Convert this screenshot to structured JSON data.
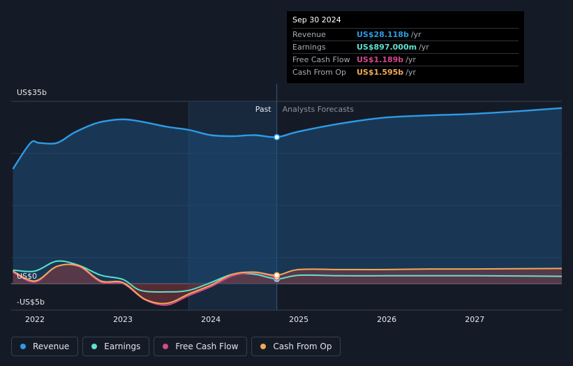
{
  "chart_data": {
    "type": "area",
    "title": "",
    "xlabel": "",
    "ylabel": "",
    "ylim": [
      -5,
      35
    ],
    "y_tick_labels": [
      "US$35b",
      "US$0",
      "-US$5b"
    ],
    "x_tick_labels": [
      "2022",
      "2023",
      "2024",
      "2025",
      "2026",
      "2027"
    ],
    "x_ticks": [
      2022,
      2023,
      2024,
      2025,
      2026,
      2027
    ],
    "xlim": [
      2021.73,
      2027.99
    ],
    "past_label": "Past",
    "forecast_label": "Analysts Forecasts",
    "divider_x": 2024.75,
    "shade_start_x": 2023.75,
    "series": [
      {
        "name": "Revenue",
        "color": "#2e9be6",
        "x": [
          2021.75,
          2021.95,
          2022.05,
          2022.25,
          2022.45,
          2022.7,
          2022.95,
          2023.1,
          2023.3,
          2023.5,
          2023.75,
          2024.0,
          2024.25,
          2024.5,
          2024.75,
          2025.0,
          2025.5,
          2026.0,
          2026.5,
          2027.0,
          2027.5,
          2027.99
        ],
        "values": [
          22.0,
          27.0,
          27.0,
          27.0,
          29.0,
          30.8,
          31.5,
          31.4,
          30.8,
          30.1,
          29.5,
          28.5,
          28.3,
          28.5,
          28.118,
          29.2,
          30.8,
          31.9,
          32.3,
          32.6,
          33.1,
          33.7
        ]
      },
      {
        "name": "Earnings",
        "color": "#5fe0cf",
        "x": [
          2021.75,
          2022.0,
          2022.25,
          2022.5,
          2022.75,
          2023.0,
          2023.2,
          2023.5,
          2023.75,
          2024.0,
          2024.25,
          2024.5,
          2024.75,
          2025.0,
          2025.5,
          2026.0,
          2026.5,
          2027.0,
          2027.99
        ],
        "values": [
          2.6,
          2.4,
          4.3,
          3.5,
          1.6,
          0.8,
          -1.3,
          -1.6,
          -1.3,
          0.2,
          1.8,
          1.8,
          0.897,
          1.6,
          1.5,
          1.5,
          1.5,
          1.5,
          1.4
        ]
      },
      {
        "name": "Free Cash Flow",
        "color": "#d6478f",
        "x": [
          2021.75,
          2022.0,
          2022.25,
          2022.5,
          2022.75,
          2023.0,
          2023.25,
          2023.5,
          2023.75,
          2024.0,
          2024.25,
          2024.5,
          2024.75
        ],
        "values": [
          2.2,
          0.3,
          3.3,
          3.3,
          0.3,
          0.0,
          -3.1,
          -4.1,
          -2.3,
          -0.6,
          1.5,
          2.1,
          1.189
        ]
      },
      {
        "name": "Cash From Op",
        "color": "#f1aa56",
        "x": [
          2021.75,
          2022.0,
          2022.25,
          2022.5,
          2022.75,
          2023.0,
          2023.25,
          2023.5,
          2023.75,
          2024.0,
          2024.25,
          2024.5,
          2024.75,
          2025.0,
          2025.5,
          2026.0,
          2026.5,
          2027.0,
          2027.99
        ],
        "values": [
          2.4,
          0.5,
          3.3,
          3.4,
          0.5,
          0.2,
          -3.0,
          -3.8,
          -2.0,
          -0.3,
          1.8,
          2.2,
          1.595,
          2.7,
          2.7,
          2.7,
          2.8,
          2.8,
          2.9
        ]
      }
    ]
  },
  "tooltip": {
    "date": "Sep 30 2024",
    "rows": [
      {
        "label": "Revenue",
        "value": "US$28.118b",
        "unit": "/yr",
        "color": "#2e9be6"
      },
      {
        "label": "Earnings",
        "value": "US$897.000m",
        "unit": "/yr",
        "color": "#5fe0cf"
      },
      {
        "label": "Free Cash Flow",
        "value": "US$1.189b",
        "unit": "/yr",
        "color": "#d6478f"
      },
      {
        "label": "Cash From Op",
        "value": "US$1.595b",
        "unit": "/yr",
        "color": "#f1aa56"
      }
    ]
  },
  "legend": [
    {
      "label": "Revenue",
      "color": "#2e9be6"
    },
    {
      "label": "Earnings",
      "color": "#5fe0cf"
    },
    {
      "label": "Free Cash Flow",
      "color": "#d6478f"
    },
    {
      "label": "Cash From Op",
      "color": "#f1aa56"
    }
  ]
}
